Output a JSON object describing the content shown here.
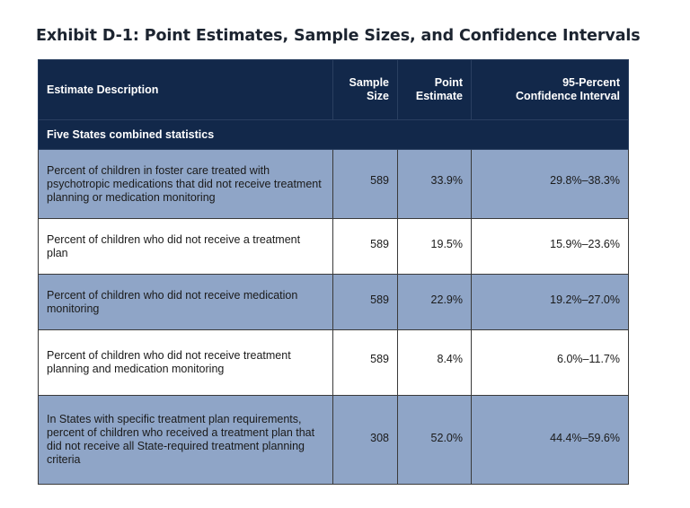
{
  "exhibit": {
    "title": "Exhibit D-1: Point Estimates, Sample Sizes, and Confidence Intervals"
  },
  "table": {
    "headers": {
      "description": "Estimate Description",
      "sample_size_line1": "Sample",
      "sample_size_line2": "Size",
      "point_estimate_line1": "Point",
      "point_estimate_line2": "Estimate",
      "ci_line1": "95-Percent",
      "ci_line2": "Confidence Interval"
    },
    "group_label": "Five States combined statistics",
    "rows": [
      {
        "description": "Percent of children in foster care treated with psychotropic medications that did not receive treatment planning or medication monitoring",
        "sample_size": "589",
        "point_estimate": "33.9%",
        "confidence_interval": "29.8%–38.3%"
      },
      {
        "description": "Percent of children who did not receive a treatment plan",
        "sample_size": "589",
        "point_estimate": "19.5%",
        "confidence_interval": "15.9%–23.6%"
      },
      {
        "description": "Percent of children who did not receive medication monitoring",
        "sample_size": "589",
        "point_estimate": "22.9%",
        "confidence_interval": "19.2%–27.0%"
      },
      {
        "description": "Percent of children who did not receive treatment planning and medication monitoring",
        "sample_size": "589",
        "point_estimate": "8.4%",
        "confidence_interval": "6.0%–11.7%"
      },
      {
        "description": "In States with specific treatment plan requirements, percent of children who received a treatment plan that did not receive all State-required treatment planning criteria",
        "sample_size": "308",
        "point_estimate": "52.0%",
        "confidence_interval": "44.4%–59.6%"
      }
    ]
  },
  "colors": {
    "header_bg": "#12284a",
    "shaded_row_bg": "#8fa5c7",
    "plain_row_bg": "#ffffff"
  }
}
